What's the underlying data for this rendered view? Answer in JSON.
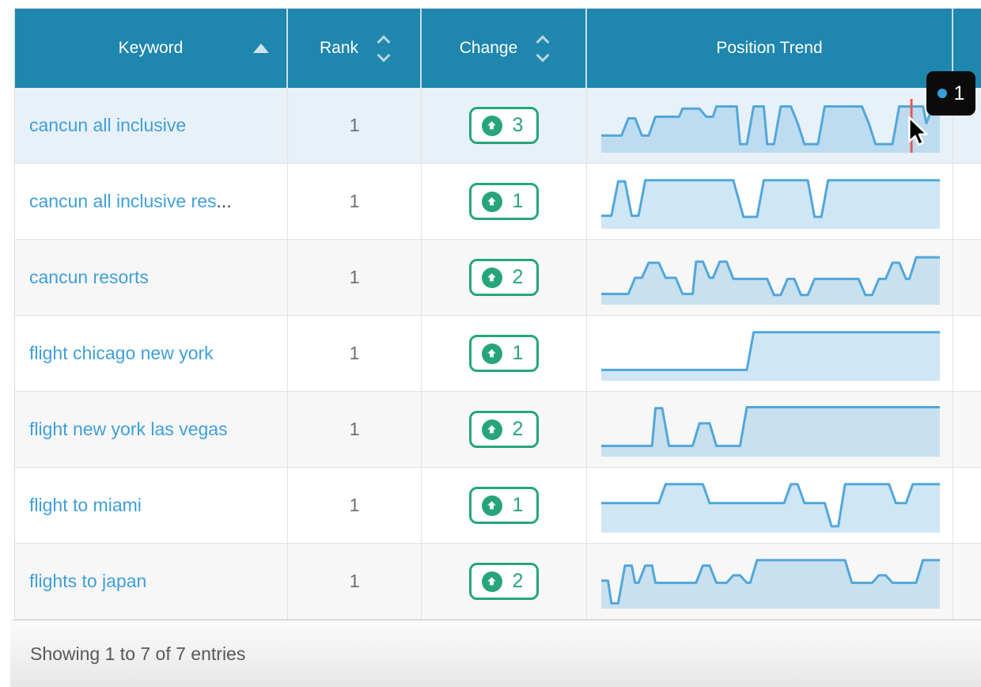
{
  "table": {
    "columns": [
      {
        "label": "Keyword",
        "sort": "asc",
        "icon": "triangle-up-icon"
      },
      {
        "label": "Rank",
        "sort": "both",
        "icon": "chevron-up-down-icon"
      },
      {
        "label": "Change",
        "sort": "both",
        "icon": "chevron-up-down-icon"
      },
      {
        "label": "Position Trend",
        "sort": "none",
        "icon": ""
      },
      {
        "label": "",
        "sort": "none",
        "icon": ""
      }
    ],
    "rows": [
      {
        "keyword": "cancun all inclusive",
        "rank": "1",
        "change": "3",
        "state": "hover",
        "cursor_line_x": 91.6,
        "trend": [
          [
            0,
            68
          ],
          [
            6,
            68
          ],
          [
            8,
            36
          ],
          [
            10,
            36
          ],
          [
            12,
            68
          ],
          [
            14,
            68
          ],
          [
            16,
            33
          ],
          [
            23,
            33
          ],
          [
            24,
            18
          ],
          [
            29,
            18
          ],
          [
            31,
            33
          ],
          [
            33,
            33
          ],
          [
            34,
            14
          ],
          [
            40,
            14
          ],
          [
            41,
            84
          ],
          [
            43,
            84
          ],
          [
            45,
            14
          ],
          [
            48,
            14
          ],
          [
            49,
            84
          ],
          [
            51,
            84
          ],
          [
            53,
            14
          ],
          [
            56,
            14
          ],
          [
            58,
            45
          ],
          [
            60,
            84
          ],
          [
            64,
            84
          ],
          [
            66,
            14
          ],
          [
            77,
            14
          ],
          [
            79,
            45
          ],
          [
            81,
            84
          ],
          [
            86,
            84
          ],
          [
            88,
            14
          ],
          [
            95,
            14
          ],
          [
            96,
            45
          ],
          [
            98,
            14
          ],
          [
            100,
            14
          ]
        ]
      },
      {
        "keyword": "cancun all inclusive res",
        "truncated": "...",
        "rank": "1",
        "change": "1",
        "trend": [
          [
            0,
            76
          ],
          [
            3,
            76
          ],
          [
            5,
            12
          ],
          [
            7,
            12
          ],
          [
            9,
            76
          ],
          [
            11,
            76
          ],
          [
            13,
            10
          ],
          [
            39,
            10
          ],
          [
            42,
            78
          ],
          [
            46,
            78
          ],
          [
            48,
            10
          ],
          [
            61,
            10
          ],
          [
            63,
            78
          ],
          [
            65,
            78
          ],
          [
            67,
            10
          ],
          [
            100,
            10
          ]
        ]
      },
      {
        "keyword": "cancun resorts",
        "rank": "1",
        "change": "2",
        "trend": [
          [
            0,
            80
          ],
          [
            8,
            80
          ],
          [
            10,
            50
          ],
          [
            12,
            50
          ],
          [
            14,
            22
          ],
          [
            17,
            22
          ],
          [
            19,
            50
          ],
          [
            22,
            50
          ],
          [
            24,
            80
          ],
          [
            27,
            80
          ],
          [
            28,
            20
          ],
          [
            30,
            20
          ],
          [
            32,
            50
          ],
          [
            33,
            50
          ],
          [
            35,
            20
          ],
          [
            37,
            20
          ],
          [
            39,
            52
          ],
          [
            49,
            52
          ],
          [
            51,
            82
          ],
          [
            53,
            82
          ],
          [
            55,
            52
          ],
          [
            57,
            52
          ],
          [
            59,
            82
          ],
          [
            61,
            82
          ],
          [
            63,
            52
          ],
          [
            76,
            52
          ],
          [
            78,
            82
          ],
          [
            80,
            82
          ],
          [
            82,
            52
          ],
          [
            84,
            52
          ],
          [
            86,
            22
          ],
          [
            88,
            22
          ],
          [
            90,
            52
          ],
          [
            91,
            52
          ],
          [
            93,
            12
          ],
          [
            100,
            12
          ]
        ]
      },
      {
        "keyword": "flight chicago new york",
        "rank": "1",
        "change": "1",
        "trend": [
          [
            0,
            80
          ],
          [
            43,
            80
          ],
          [
            45,
            10
          ],
          [
            100,
            10
          ]
        ]
      },
      {
        "keyword": "flight new york las vegas",
        "rank": "1",
        "change": "2",
        "trend": [
          [
            0,
            80
          ],
          [
            15,
            80
          ],
          [
            16,
            10
          ],
          [
            18,
            10
          ],
          [
            20,
            80
          ],
          [
            27,
            80
          ],
          [
            29,
            38
          ],
          [
            32,
            38
          ],
          [
            34,
            80
          ],
          [
            41,
            80
          ],
          [
            43,
            8
          ],
          [
            100,
            8
          ]
        ]
      },
      {
        "keyword": "flight to miami",
        "rank": "1",
        "change": "1",
        "trend": [
          [
            0,
            45
          ],
          [
            17,
            45
          ],
          [
            19,
            10
          ],
          [
            30,
            10
          ],
          [
            32,
            45
          ],
          [
            54,
            45
          ],
          [
            56,
            10
          ],
          [
            58,
            10
          ],
          [
            60,
            45
          ],
          [
            66,
            45
          ],
          [
            68,
            88
          ],
          [
            70,
            88
          ],
          [
            72,
            10
          ],
          [
            85,
            10
          ],
          [
            87,
            45
          ],
          [
            90,
            45
          ],
          [
            92,
            10
          ],
          [
            100,
            10
          ]
        ]
      },
      {
        "keyword": "flights to japan",
        "rank": "1",
        "change": "2",
        "trend": [
          [
            0,
            48
          ],
          [
            2,
            48
          ],
          [
            3,
            90
          ],
          [
            5,
            90
          ],
          [
            7,
            20
          ],
          [
            9,
            20
          ],
          [
            10,
            52
          ],
          [
            11,
            52
          ],
          [
            13,
            20
          ],
          [
            15,
            20
          ],
          [
            16,
            52
          ],
          [
            28,
            52
          ],
          [
            30,
            20
          ],
          [
            32,
            20
          ],
          [
            34,
            52
          ],
          [
            37,
            52
          ],
          [
            39,
            38
          ],
          [
            41,
            38
          ],
          [
            43,
            52
          ],
          [
            44,
            52
          ],
          [
            46,
            10
          ],
          [
            72,
            10
          ],
          [
            74,
            52
          ],
          [
            80,
            52
          ],
          [
            82,
            38
          ],
          [
            84,
            38
          ],
          [
            86,
            52
          ],
          [
            93,
            52
          ],
          [
            95,
            10
          ],
          [
            100,
            10
          ]
        ]
      }
    ],
    "footer": {
      "summary": "Showing 1 to 7 of 7 entries"
    }
  },
  "tooltip": {
    "value": "1"
  },
  "icons": {
    "change_badge": "arrow-up-circle-icon",
    "tooltip_marker": "series-dot-icon"
  },
  "colors": {
    "header_bg": "#1f86ad",
    "link": "#3f9fd8",
    "change_green": "#26a57b",
    "spark_stroke": "#51a7db",
    "spark_fill": "rgba(82,167,219,0.28)",
    "cursor_line": "#e05a57",
    "tooltip_bg": "#0b0b0b",
    "tooltip_dot": "#36a0da",
    "row_stripe": "#f7f7f7",
    "row_hover": "#e8f1f8"
  }
}
